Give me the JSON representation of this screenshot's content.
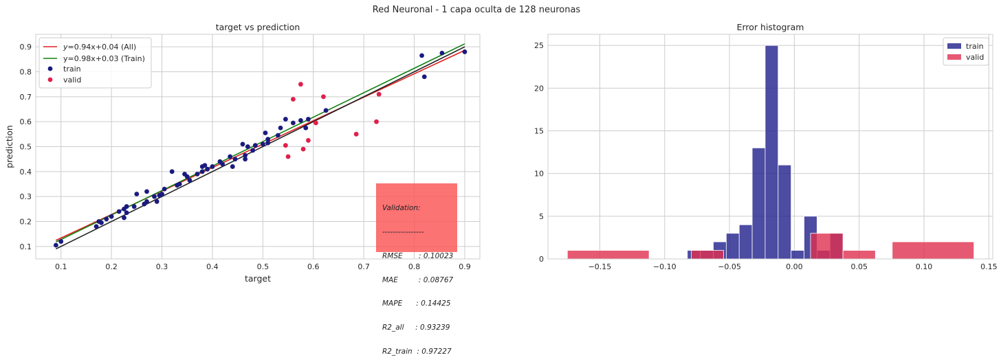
{
  "figure": {
    "suptitle": "Red Neuronal - 1 capa oculta de 128 neuronas"
  },
  "colors": {
    "train": "#1a1a80",
    "valid": "#e0204a",
    "fit_all": "#e02020",
    "fit_train": "#108010",
    "identity": "#222222",
    "grid": "#cccccc"
  },
  "stats_box": {
    "lines": [
      "Validation:",
      "----------------",
      "RMSE       : 0.10023",
      "MAE         : 0.08767",
      "MAPE      : 0.14425",
      "R2_all     : 0.93239",
      "R2_train  : 0.97227"
    ]
  },
  "chart_data": [
    {
      "type": "scatter",
      "title": "target vs prediction",
      "xlabel": "target",
      "ylabel": "prediction",
      "xlim": [
        0.05,
        0.93
      ],
      "ylim": [
        0.05,
        0.95
      ],
      "xticks": [
        0.1,
        0.2,
        0.3,
        0.4,
        0.5,
        0.6,
        0.7,
        0.8,
        0.9
      ],
      "xtick_labels": [
        "0.1",
        "0.2",
        "0.3",
        "0.4",
        "0.5",
        "0.6",
        "0.7",
        "0.8",
        "0.9"
      ],
      "yticks": [
        0.1,
        0.2,
        0.3,
        0.4,
        0.5,
        0.6,
        0.7,
        0.8,
        0.9
      ],
      "ytick_labels": [
        "0.1",
        "0.2",
        "0.3",
        "0.4",
        "0.5",
        "0.6",
        "0.7",
        "0.8",
        "0.9"
      ],
      "grid": true,
      "legend_position": "upper-left",
      "lines": [
        {
          "name": "$y$=0.94x+0.04 (All)",
          "label_parts": [
            "y",
            "=0.94x+0.04 (All)"
          ],
          "slope": 0.94,
          "intercept": 0.04,
          "x_range": [
            0.09,
            0.9
          ],
          "color": "#e02020"
        },
        {
          "name": "y=0.98x+0.03 (Train)",
          "label_parts": [
            "",
            "y=0.98x+0.03 (Train)"
          ],
          "slope": 0.98,
          "intercept": 0.03,
          "x_range": [
            0.09,
            0.9
          ],
          "color": "#108010"
        },
        {
          "name": "",
          "label_parts": null,
          "slope": 1.0,
          "intercept": 0.0,
          "x_range": [
            0.09,
            0.9
          ],
          "color": "#222222"
        }
      ],
      "series": [
        {
          "name": "train",
          "color": "#1a1a80",
          "points": [
            [
              0.09,
              0.105
            ],
            [
              0.1,
              0.12
            ],
            [
              0.17,
              0.18
            ],
            [
              0.175,
              0.2
            ],
            [
              0.18,
              0.195
            ],
            [
              0.19,
              0.21
            ],
            [
              0.2,
              0.22
            ],
            [
              0.215,
              0.24
            ],
            [
              0.225,
              0.25
            ],
            [
              0.23,
              0.26
            ],
            [
              0.225,
              0.215
            ],
            [
              0.23,
              0.235
            ],
            [
              0.245,
              0.26
            ],
            [
              0.25,
              0.31
            ],
            [
              0.265,
              0.27
            ],
            [
              0.27,
              0.32
            ],
            [
              0.27,
              0.28
            ],
            [
              0.285,
              0.3
            ],
            [
              0.29,
              0.28
            ],
            [
              0.295,
              0.305
            ],
            [
              0.3,
              0.31
            ],
            [
              0.305,
              0.33
            ],
            [
              0.32,
              0.4
            ],
            [
              0.33,
              0.345
            ],
            [
              0.335,
              0.35
            ],
            [
              0.345,
              0.39
            ],
            [
              0.35,
              0.38
            ],
            [
              0.355,
              0.365
            ],
            [
              0.37,
              0.39
            ],
            [
              0.38,
              0.42
            ],
            [
              0.38,
              0.4
            ],
            [
              0.385,
              0.425
            ],
            [
              0.39,
              0.41
            ],
            [
              0.4,
              0.42
            ],
            [
              0.415,
              0.44
            ],
            [
              0.42,
              0.43
            ],
            [
              0.435,
              0.46
            ],
            [
              0.44,
              0.42
            ],
            [
              0.445,
              0.45
            ],
            [
              0.46,
              0.51
            ],
            [
              0.465,
              0.465
            ],
            [
              0.465,
              0.45
            ],
            [
              0.47,
              0.5
            ],
            [
              0.48,
              0.485
            ],
            [
              0.485,
              0.505
            ],
            [
              0.5,
              0.51
            ],
            [
              0.505,
              0.555
            ],
            [
              0.51,
              0.53
            ],
            [
              0.51,
              0.515
            ],
            [
              0.53,
              0.545
            ],
            [
              0.535,
              0.575
            ],
            [
              0.545,
              0.61
            ],
            [
              0.56,
              0.595
            ],
            [
              0.575,
              0.605
            ],
            [
              0.585,
              0.575
            ],
            [
              0.59,
              0.61
            ],
            [
              0.625,
              0.645
            ],
            [
              0.815,
              0.865
            ],
            [
              0.82,
              0.78
            ],
            [
              0.855,
              0.875
            ],
            [
              0.9,
              0.88
            ]
          ]
        },
        {
          "name": "valid",
          "color": "#e0204a",
          "points": [
            [
              0.545,
              0.505
            ],
            [
              0.55,
              0.46
            ],
            [
              0.56,
              0.69
            ],
            [
              0.575,
              0.75
            ],
            [
              0.58,
              0.49
            ],
            [
              0.59,
              0.525
            ],
            [
              0.605,
              0.595
            ],
            [
              0.62,
              0.7
            ],
            [
              0.685,
              0.55
            ],
            [
              0.725,
              0.6
            ],
            [
              0.73,
              0.71
            ]
          ]
        }
      ]
    },
    {
      "type": "histogram",
      "title": "Error histogram",
      "xlabel": "",
      "ylabel": "",
      "xlim": [
        -0.19,
        0.153
      ],
      "ylim": [
        0,
        26.3
      ],
      "xticks": [
        -0.15,
        -0.1,
        -0.05,
        0.0,
        0.05,
        0.1,
        0.15
      ],
      "xtick_labels": [
        "−0.15",
        "−0.10",
        "−0.05",
        "0.00",
        "0.05",
        "0.10",
        "0.15"
      ],
      "yticks": [
        0,
        5,
        10,
        15,
        20,
        25
      ],
      "ytick_labels": [
        "0",
        "5",
        "10",
        "15",
        "20",
        "25"
      ],
      "grid": true,
      "legend_position": "upper-right",
      "series": [
        {
          "name": "train",
          "color": "#1f1f8c",
          "bins": [
            [
              -0.0825,
              -0.0725,
              1
            ],
            [
              -0.0725,
              -0.0625,
              1
            ],
            [
              -0.0625,
              -0.0525,
              2
            ],
            [
              -0.0525,
              -0.0425,
              3
            ],
            [
              -0.0425,
              -0.0325,
              4
            ],
            [
              -0.0325,
              -0.0225,
              13
            ],
            [
              -0.0225,
              -0.0125,
              25
            ],
            [
              -0.0125,
              -0.0025,
              11
            ],
            [
              -0.0025,
              0.0075,
              1
            ],
            [
              0.0075,
              0.0175,
              5
            ],
            [
              0.0175,
              0.0275,
              1
            ],
            [
              0.0275,
              0.0375,
              3
            ]
          ]
        },
        {
          "name": "valid",
          "color": "#e0304f",
          "bins": [
            [
              -0.175,
              -0.112,
              1
            ],
            [
              -0.0795,
              -0.0545,
              1
            ],
            [
              0.0125,
              0.0375,
              3
            ],
            [
              0.0375,
              0.0625,
              1
            ],
            [
              0.0755,
              0.1385,
              2
            ]
          ]
        }
      ]
    }
  ]
}
